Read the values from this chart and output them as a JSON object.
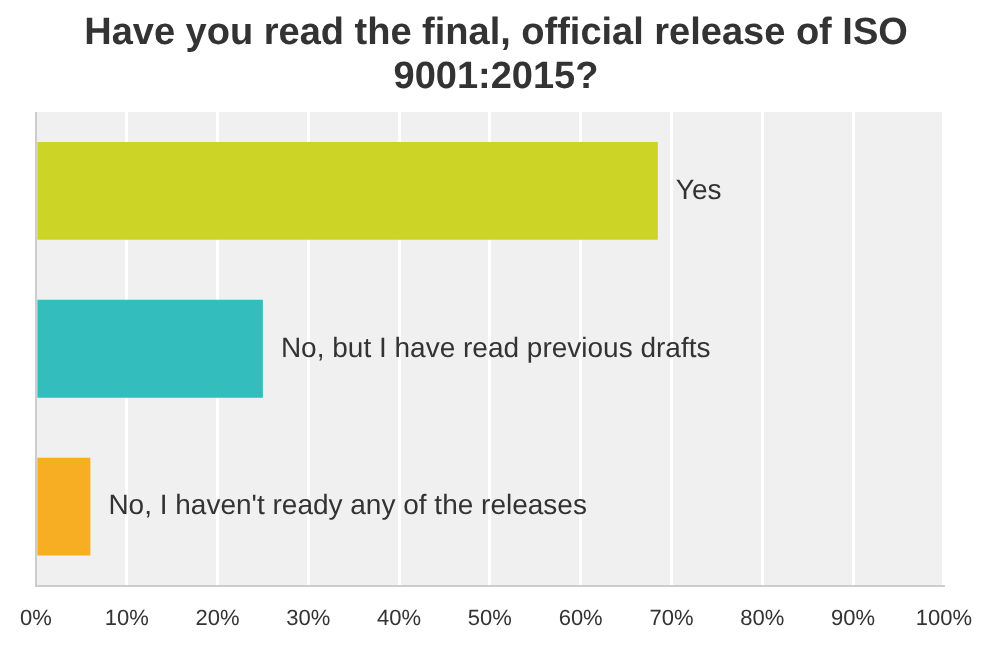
{
  "chart_data": {
    "type": "bar",
    "orientation": "horizontal",
    "title": "Have you read the final, official release of ISO 9001:2015?",
    "categories": [
      "Yes",
      "No, but I have read previous drafts",
      "No, I haven't ready any of the releases"
    ],
    "values": [
      68.5,
      25,
      6
    ],
    "colors": [
      "#ccd426",
      "#33bdbd",
      "#f7ae22"
    ],
    "xlim": [
      0,
      100
    ],
    "xticks": [
      {
        "value": 0,
        "label": "0%"
      },
      {
        "value": 10,
        "label": "10%"
      },
      {
        "value": 20,
        "label": "20%"
      },
      {
        "value": 30,
        "label": "30%"
      },
      {
        "value": 40,
        "label": "40%"
      },
      {
        "value": 50,
        "label": "50%"
      },
      {
        "value": 60,
        "label": "60%"
      },
      {
        "value": 70,
        "label": "70%"
      },
      {
        "value": 80,
        "label": "80%"
      },
      {
        "value": 90,
        "label": "90%"
      },
      {
        "value": 100,
        "label": "100%"
      }
    ],
    "grid": "x",
    "legend": false,
    "tick_labels": "x"
  }
}
